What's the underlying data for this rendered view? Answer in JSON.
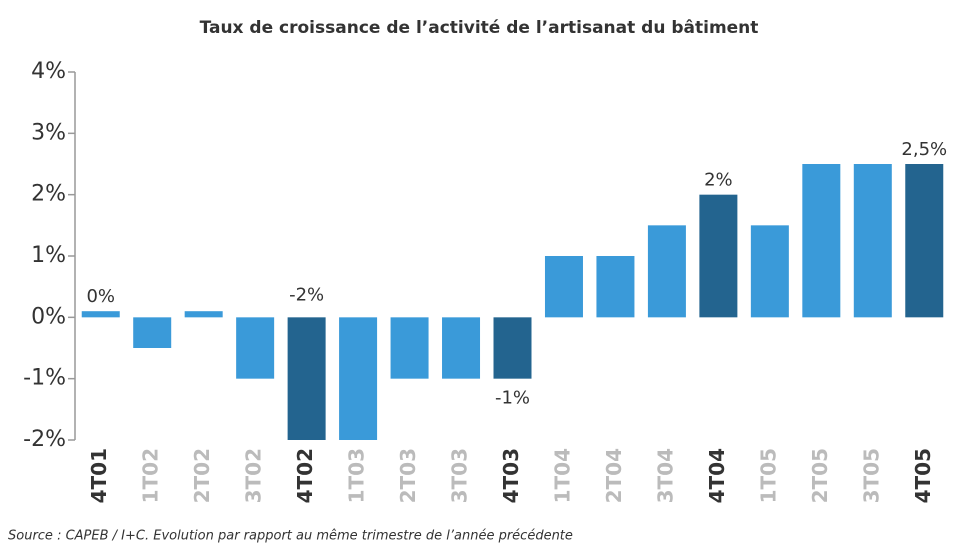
{
  "chart_data": {
    "type": "bar",
    "title": "Taux de croissance de l’activité de l’artisanat du bâtiment",
    "source": "Source : CAPEB / I+C. Evolution par rapport au même trimestre de l’année précédente",
    "categories": [
      "4T01",
      "1T02",
      "2T02",
      "3T02",
      "4T02",
      "1T03",
      "2T03",
      "3T03",
      "4T03",
      "1T04",
      "2T04",
      "3T04",
      "4T04",
      "1T05",
      "2T05",
      "3T05",
      "4T05"
    ],
    "values": [
      0.1,
      -0.5,
      0.1,
      -1,
      -2,
      -2,
      -1,
      -1,
      -1,
      1,
      1,
      1.5,
      2,
      1.5,
      2.5,
      2.5,
      2.5
    ],
    "value_labels": [
      "0%",
      null,
      null,
      null,
      "-2%",
      null,
      null,
      null,
      "-1%",
      null,
      null,
      null,
      "2%",
      null,
      null,
      null,
      "2,5%"
    ],
    "colors": [
      "#3a9ad9",
      "#3a9ad9",
      "#3a9ad9",
      "#3a9ad9",
      "#23648f",
      "#3a9ad9",
      "#3a9ad9",
      "#3a9ad9",
      "#23648f",
      "#3a9ad9",
      "#3a9ad9",
      "#3a9ad9",
      "#23648f",
      "#3a9ad9",
      "#3a9ad9",
      "#3a9ad9",
      "#23648f"
    ],
    "category_colors": [
      "#333",
      "#bbb",
      "#bbb",
      "#bbb",
      "#333",
      "#bbb",
      "#bbb",
      "#bbb",
      "#333",
      "#bbb",
      "#bbb",
      "#bbb",
      "#333",
      "#bbb",
      "#bbb",
      "#bbb",
      "#333"
    ],
    "ylim": [
      -2,
      4
    ],
    "yticks": [
      {
        "value": -2,
        "label": "-2%"
      },
      {
        "value": -1,
        "label": "-1%"
      },
      {
        "value": 0,
        "label": "0%"
      },
      {
        "value": 1,
        "label": "1%"
      },
      {
        "value": 2,
        "label": "2%"
      },
      {
        "value": 3,
        "label": "3%"
      },
      {
        "value": 4,
        "label": "4%"
      }
    ]
  }
}
